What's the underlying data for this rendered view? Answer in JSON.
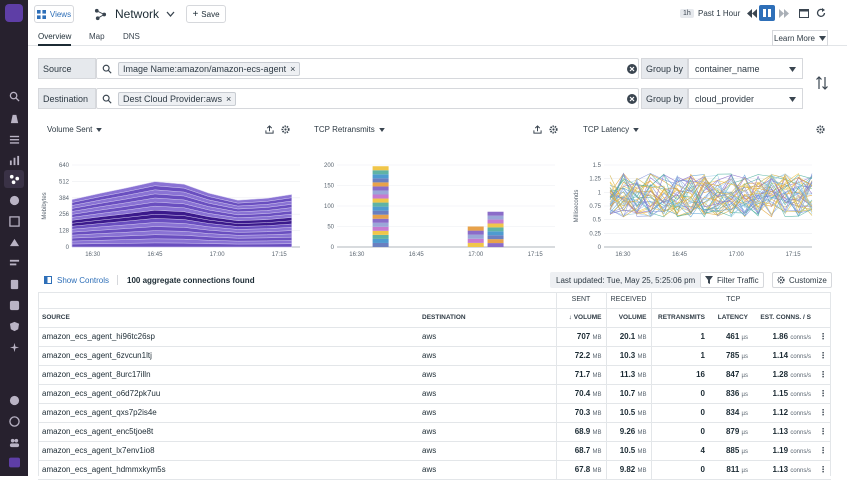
{
  "topbar": {
    "views_label": "Views",
    "title": "Network",
    "save_label": "Save",
    "time_badge": "1h",
    "time_label": "Past 1 Hour"
  },
  "tabs": [
    {
      "label": "Overview"
    },
    {
      "label": "Map"
    },
    {
      "label": "DNS"
    }
  ],
  "learn_more": "Learn More",
  "filters": {
    "source_label": "Source",
    "source_chip": "Image Name:amazon/amazon-ecs-agent",
    "destination_label": "Destination",
    "destination_chip": "Dest Cloud Provider:aws",
    "group_by_label": "Group by",
    "source_group": "container_name",
    "destination_group": "cloud_provider"
  },
  "charts": [
    {
      "title": "Volume Sent"
    },
    {
      "title": "TCP Retransmits"
    },
    {
      "title": "TCP Latency"
    }
  ],
  "chart_data": [
    {
      "type": "area",
      "ylabel": "Mebibytes",
      "y_ticks": [
        "0",
        "128",
        "256",
        "384",
        "512",
        "640"
      ],
      "ylim": [
        0,
        640
      ],
      "x_ticks": [
        "16:30",
        "16:45",
        "17:00",
        "17:15"
      ],
      "x": [
        "16:25",
        "16:32",
        "16:38",
        "16:45",
        "16:52",
        "16:58",
        "17:05",
        "17:12",
        "17:18"
      ],
      "total": [
        370,
        420,
        460,
        510,
        490,
        420,
        365,
        380,
        410
      ],
      "series_count": 16
    },
    {
      "type": "bar",
      "y_ticks": [
        "0",
        "50",
        "100",
        "150",
        "200"
      ],
      "ylim": [
        0,
        200
      ],
      "x_ticks": [
        "16:30",
        "16:45",
        "17:00",
        "17:15"
      ],
      "bars": [
        {
          "x": "16:36",
          "value": 197
        },
        {
          "x": "17:00",
          "value": 50
        },
        {
          "x": "17:05",
          "value": 86
        }
      ]
    },
    {
      "type": "line",
      "ylabel": "Milliseconds",
      "y_ticks": [
        "0",
        "0.25",
        "0.5",
        "0.75",
        "1",
        "1.25",
        "1.5"
      ],
      "ylim": [
        0,
        1.5
      ],
      "x_ticks": [
        "16:30",
        "16:45",
        "17:00",
        "17:15"
      ],
      "x_count": 16,
      "series_count": 40
    }
  ],
  "controls": {
    "show_controls": "Show Controls",
    "connections_found": "100 aggregate connections found",
    "last_updated": "Last updated: Tue, May 25, 5:25:06 pm",
    "filter_traffic": "Filter Traffic",
    "customize": "Customize"
  },
  "table": {
    "group_sent": "SENT",
    "group_received": "RECEIVED",
    "group_tcp": "TCP",
    "col_source": "SOURCE",
    "col_destination": "DESTINATION",
    "col_volume_sent": "VOLUME",
    "col_volume_received": "VOLUME",
    "col_retransmits": "RETRANSMITS",
    "col_latency": "LATENCY",
    "col_est_conns": "EST. CONNS. / S",
    "rows": [
      {
        "source": "amazon_ecs_agent_hi96tc26sp",
        "destination": "aws",
        "sent": "707",
        "sent_unit": "MB",
        "received": "20.1",
        "received_unit": "MB",
        "retransmits": "1",
        "latency": "461",
        "latency_unit": "µs",
        "conns": "1.86",
        "conns_unit": "conns/s"
      },
      {
        "source": "amazon_ecs_agent_6zvcun1ltj",
        "destination": "aws",
        "sent": "72.2",
        "sent_unit": "MB",
        "received": "10.3",
        "received_unit": "MB",
        "retransmits": "1",
        "latency": "785",
        "latency_unit": "µs",
        "conns": "1.14",
        "conns_unit": "conns/s"
      },
      {
        "source": "amazon_ecs_agent_8urc17illn",
        "destination": "aws",
        "sent": "71.7",
        "sent_unit": "MB",
        "received": "11.3",
        "received_unit": "MB",
        "retransmits": "16",
        "latency": "847",
        "latency_unit": "µs",
        "conns": "1.28",
        "conns_unit": "conns/s"
      },
      {
        "source": "amazon_ecs_agent_o6d72pk7uu",
        "destination": "aws",
        "sent": "70.4",
        "sent_unit": "MB",
        "received": "10.7",
        "received_unit": "MB",
        "retransmits": "0",
        "latency": "836",
        "latency_unit": "µs",
        "conns": "1.15",
        "conns_unit": "conns/s"
      },
      {
        "source": "amazon_ecs_agent_qxs7p2is4e",
        "destination": "aws",
        "sent": "70.3",
        "sent_unit": "MB",
        "received": "10.5",
        "received_unit": "MB",
        "retransmits": "0",
        "latency": "834",
        "latency_unit": "µs",
        "conns": "1.12",
        "conns_unit": "conns/s"
      },
      {
        "source": "amazon_ecs_agent_enc5tjoe8t",
        "destination": "aws",
        "sent": "68.9",
        "sent_unit": "MB",
        "received": "9.26",
        "received_unit": "MB",
        "retransmits": "0",
        "latency": "879",
        "latency_unit": "µs",
        "conns": "1.13",
        "conns_unit": "conns/s"
      },
      {
        "source": "amazon_ecs_agent_lx7env1io8",
        "destination": "aws",
        "sent": "68.7",
        "sent_unit": "MB",
        "received": "10.5",
        "received_unit": "MB",
        "retransmits": "4",
        "latency": "885",
        "latency_unit": "µs",
        "conns": "1.19",
        "conns_unit": "conns/s"
      },
      {
        "source": "amazon_ecs_agent_hdmmxkym5s",
        "destination": "aws",
        "sent": "67.8",
        "sent_unit": "MB",
        "received": "9.82",
        "received_unit": "MB",
        "retransmits": "0",
        "latency": "811",
        "latency_unit": "µs",
        "conns": "1.13",
        "conns_unit": "conns/s"
      }
    ]
  },
  "colors": {
    "nav_bg": "#27212e",
    "accent": "#5e3ea6",
    "link": "#2e6fb8"
  },
  "icons": [
    "datadog-logo-icon",
    "search-icon",
    "grid-icon",
    "network-icon",
    "pause-icon",
    "calendar-icon",
    "refresh-icon"
  ]
}
